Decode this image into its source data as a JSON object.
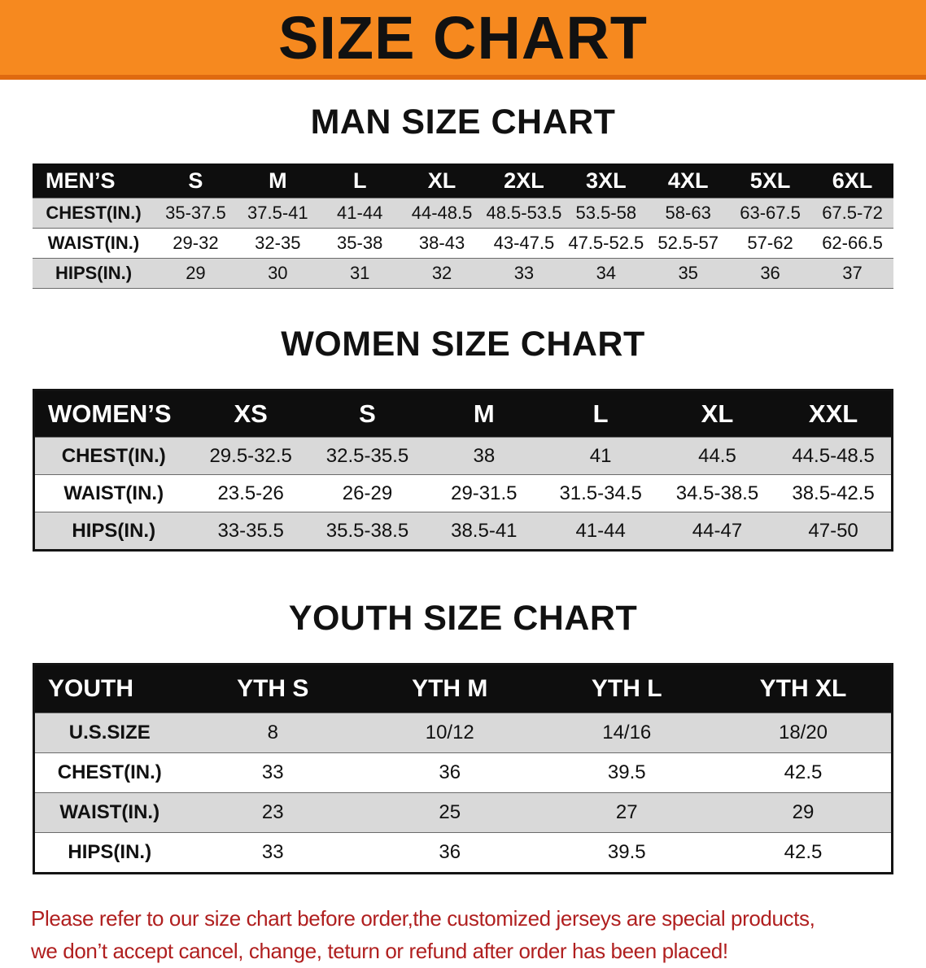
{
  "colors": {
    "banner_bg": "#f6891f",
    "banner_border": "#df6a10",
    "title_text": "#111111",
    "header_row_bg": "#0e0e0e",
    "header_row_text": "#ffffff",
    "stripe_bg": "#d9d9d9",
    "row_line": "#6a6a6a",
    "table_border": "#141414",
    "footer_text": "#b01f1f"
  },
  "banner": {
    "title": "SIZE CHART"
  },
  "chart_data": [
    {
      "type": "table",
      "title": "MAN SIZE CHART",
      "columns": [
        "MEN’S",
        "S",
        "M",
        "L",
        "XL",
        "2XL",
        "3XL",
        "4XL",
        "5XL",
        "6XL"
      ],
      "rows": [
        [
          "CHEST(IN.)",
          "35-37.5",
          "37.5-41",
          "41-44",
          "44-48.5",
          "48.5-53.5",
          "53.5-58",
          "58-63",
          "63-67.5",
          "67.5-72"
        ],
        [
          "WAIST(IN.)",
          "29-32",
          "32-35",
          "35-38",
          "38-43",
          "43-47.5",
          "47.5-52.5",
          "52.5-57",
          "57-62",
          "62-66.5"
        ],
        [
          "HIPS(IN.)",
          "29",
          "30",
          "31",
          "32",
          "33",
          "34",
          "35",
          "36",
          "37"
        ]
      ]
    },
    {
      "type": "table",
      "title": "WOMEN SIZE CHART",
      "columns": [
        "WOMEN’S",
        "XS",
        "S",
        "M",
        "L",
        "XL",
        "XXL"
      ],
      "rows": [
        [
          "CHEST(IN.)",
          "29.5-32.5",
          "32.5-35.5",
          "38",
          "41",
          "44.5",
          "44.5-48.5"
        ],
        [
          "WAIST(IN.)",
          "23.5-26",
          "26-29",
          "29-31.5",
          "31.5-34.5",
          "34.5-38.5",
          "38.5-42.5"
        ],
        [
          "HIPS(IN.)",
          "33-35.5",
          "35.5-38.5",
          "38.5-41",
          "41-44",
          "44-47",
          "47-50"
        ]
      ]
    },
    {
      "type": "table",
      "title": "YOUTH SIZE CHART",
      "columns": [
        "YOUTH",
        "YTH S",
        "YTH M",
        "YTH L",
        "YTH XL"
      ],
      "rows": [
        [
          "U.S.SIZE",
          "8",
          "10/12",
          "14/16",
          "18/20"
        ],
        [
          "CHEST(IN.)",
          "33",
          "36",
          "39.5",
          "42.5"
        ],
        [
          "WAIST(IN.)",
          "23",
          "25",
          "27",
          "29"
        ],
        [
          "HIPS(IN.)",
          "33",
          "36",
          "39.5",
          "42.5"
        ]
      ]
    }
  ],
  "footer": {
    "line1": "Please refer to our size chart before order,the customized jerseys are special products,",
    "line2": "we don’t accept cancel, change, teturn or refund after order has been placed!"
  }
}
